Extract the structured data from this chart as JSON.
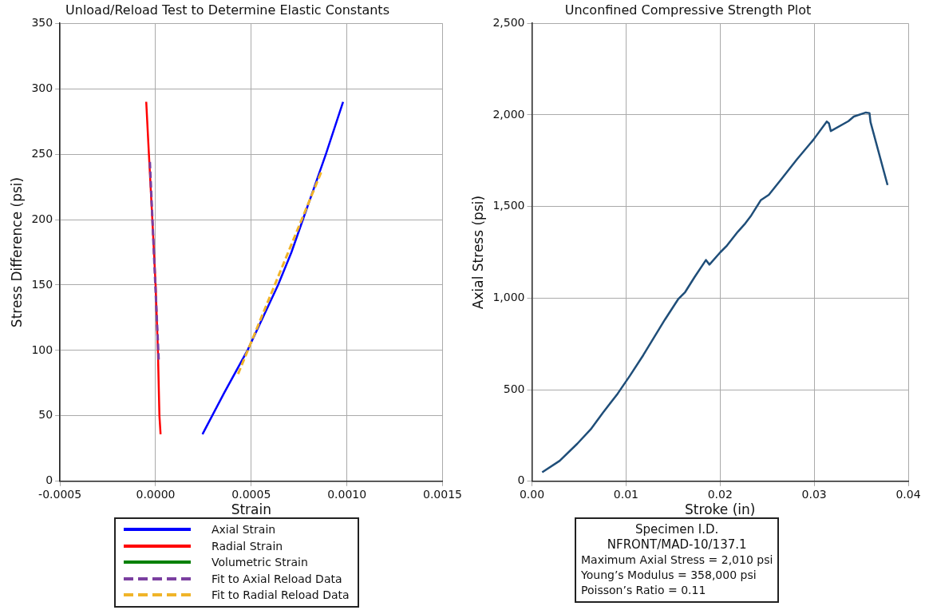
{
  "chart_data": [
    {
      "type": "line",
      "title": "Unload/Reload Test to Determine Elastic Constants",
      "xlabel": "Strain",
      "ylabel": "Stress Difference (psi)",
      "xlim": [
        -0.0005,
        0.0015
      ],
      "xticks": [
        {
          "value": -0.0005,
          "label": "-0.0005"
        },
        {
          "value": 0,
          "label": "0.0000"
        },
        {
          "value": 0.0005,
          "label": "0.0005"
        },
        {
          "value": 0.001,
          "label": "0.0010"
        },
        {
          "value": 0.0015,
          "label": "0.0015"
        }
      ],
      "ylim": [
        0,
        350
      ],
      "yticks": [
        0,
        50,
        100,
        150,
        200,
        250,
        300,
        350
      ],
      "grid": true,
      "legend": "bottom",
      "marker": "none",
      "series": [
        {
          "name": "Axial Strain",
          "color": "#0000ff",
          "x": [
            0.000245,
            0.00036,
            0.00048,
            0.00056,
            0.00064,
            0.00071,
            0.00077,
            0.00083,
            0.00089,
            0.00098
          ],
          "values": [
            36,
            68,
            100,
            125,
            150,
            175,
            200,
            225,
            250,
            290
          ]
        },
        {
          "name": "Radial Strain",
          "color": "#ff0000",
          "x": [
            -4.9e-05,
            -3.5e-05,
            -1.7e-05,
            0,
            1.2e-05,
            2e-05,
            2.6e-05
          ],
          "values": [
            290,
            250,
            200,
            150,
            100,
            50,
            36
          ]
        },
        {
          "name": "Volumetric Strain",
          "color": "#008000"
        },
        {
          "name": "Fit to Axial Reload Data",
          "color": "#7b3fa0",
          "line_style": "dashed",
          "x": [
            -3e-05,
            1.6e-05
          ],
          "values": [
            244,
            93
          ]
        },
        {
          "name": "Fit to Radial Reload Data",
          "color": "#f0b429",
          "line_style": "dashed",
          "x": [
            0.000431,
            0.000865
          ],
          "values": [
            82,
            236
          ]
        }
      ]
    },
    {
      "type": "line",
      "title": "Unconfined Compressive Strength Plot",
      "xlabel": "Stroke (in)",
      "ylabel": "Axial Stress (psi)",
      "xlim": [
        0,
        0.04
      ],
      "xticks": [
        {
          "value": 0,
          "label": "0.00"
        },
        {
          "value": 0.01,
          "label": "0.01"
        },
        {
          "value": 0.02,
          "label": "0.02"
        },
        {
          "value": 0.03,
          "label": "0.03"
        },
        {
          "value": 0.04,
          "label": "0.04"
        }
      ],
      "ylim": [
        0,
        2500
      ],
      "yticks": [
        0,
        500,
        {
          "value": 1000,
          "label": "1,000"
        },
        {
          "value": 1500,
          "label": "1,500"
        },
        {
          "value": 2000,
          "label": "2,000"
        },
        {
          "value": 2500,
          "label": "2,500"
        }
      ],
      "grid": true,
      "marker": "none",
      "series": [
        {
          "color": "#1f4e79",
          "x": [
            0.00109,
            0.00295,
            0.00482,
            0.00625,
            0.00754,
            0.00912,
            0.01041,
            0.01184,
            0.01299,
            0.01414,
            0.01557,
            0.01629,
            0.01729,
            0.0185,
            0.01887,
            0.02002,
            0.02073,
            0.02188,
            0.0226,
            0.02332,
            0.02432,
            0.02518,
            0.02647,
            0.02819,
            0.02991,
            0.03134,
            0.03157,
            0.03177,
            0.03364,
            0.03421,
            0.0355,
            0.03588,
            0.03599,
            0.0378
          ],
          "values": [
            49,
            112,
            205,
            284,
            374,
            479,
            576,
            689,
            786,
            883,
            996,
            1033,
            1115,
            1208,
            1183,
            1250,
            1287,
            1362,
            1403,
            1452,
            1534,
            1564,
            1647,
            1759,
            1864,
            1964,
            1954,
            1912,
            1966,
            1991,
            2013,
            2010,
            1961,
            1617
          ]
        }
      ],
      "annotations": [
        "Specimen I.D.",
        "NFRONT/MAD-10/137.1",
        "Maximum Axial Stress = 2,010 psi",
        "Young’s Modulus = 358,000 psi",
        "Poisson’s Ratio = 0.11"
      ]
    }
  ]
}
